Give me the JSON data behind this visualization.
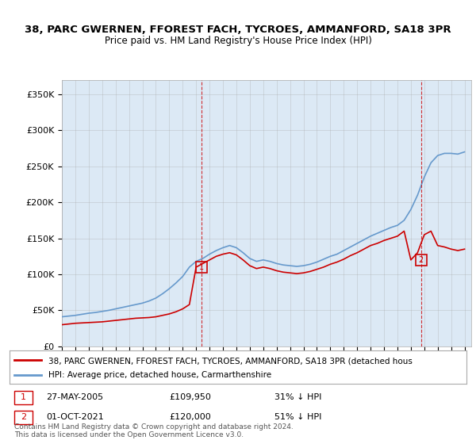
{
  "title1": "38, PARC GWERNEN, FFOREST FACH, TYCROES, AMMANFORD, SA18 3PR",
  "title2": "Price paid vs. HM Land Registry's House Price Index (HPI)",
  "bg_color": "#dce9f5",
  "plot_bg": "#dce9f5",
  "red_color": "#cc0000",
  "blue_color": "#6699cc",
  "marker1_date_idx": 0,
  "marker2_date_idx": 1,
  "marker1_label": "1",
  "marker2_label": "2",
  "marker1_info": "27-MAY-2005    £109,950    31% ↓ HPI",
  "marker2_info": "01-OCT-2021    £120,000    51% ↓ HPI",
  "legend_line1": "38, PARC GWERNEN, FFOREST FACH, TYCROES, AMMANFORD, SA18 3PR (detached hous",
  "legend_line2": "HPI: Average price, detached house, Carmarthenshire",
  "footnote": "Contains HM Land Registry data © Crown copyright and database right 2024.\nThis data is licensed under the Open Government Licence v3.0.",
  "ylabel_ticks": [
    "£0",
    "£50K",
    "£100K",
    "£150K",
    "£200K",
    "£250K",
    "£300K",
    "£350K"
  ],
  "ytick_vals": [
    0,
    50000,
    100000,
    150000,
    200000,
    250000,
    300000,
    350000
  ],
  "ylim": [
    0,
    370000
  ],
  "xlim_start": 1995.0,
  "xlim_end": 2025.5,
  "marker1_x": 2005.4,
  "marker2_x": 2021.75,
  "marker1_y_red": 109950,
  "marker2_y_red": 120000,
  "hpi_years": [
    1995,
    1995.5,
    1996,
    1996.5,
    1997,
    1997.5,
    1998,
    1998.5,
    1999,
    1999.5,
    2000,
    2000.5,
    2001,
    2001.5,
    2002,
    2002.5,
    2003,
    2003.5,
    2004,
    2004.5,
    2005,
    2005.5,
    2006,
    2006.5,
    2007,
    2007.5,
    2008,
    2008.5,
    2009,
    2009.5,
    2010,
    2010.5,
    2011,
    2011.5,
    2012,
    2012.5,
    2013,
    2013.5,
    2014,
    2014.5,
    2015,
    2015.5,
    2016,
    2016.5,
    2017,
    2017.5,
    2018,
    2018.5,
    2019,
    2019.5,
    2020,
    2020.5,
    2021,
    2021.5,
    2022,
    2022.5,
    2023,
    2023.5,
    2024,
    2024.5,
    2025
  ],
  "hpi_vals": [
    41000,
    42000,
    43000,
    44500,
    46000,
    47000,
    48500,
    50000,
    52000,
    54000,
    56000,
    58000,
    60000,
    63000,
    67000,
    73000,
    80000,
    88000,
    97000,
    110000,
    118000,
    122000,
    128000,
    133000,
    137000,
    140000,
    137000,
    130000,
    122000,
    118000,
    120000,
    118000,
    115000,
    113000,
    112000,
    111000,
    112000,
    114000,
    117000,
    121000,
    125000,
    128000,
    133000,
    138000,
    143000,
    148000,
    153000,
    157000,
    161000,
    165000,
    168000,
    175000,
    190000,
    210000,
    235000,
    255000,
    265000,
    268000,
    268000,
    267000,
    270000
  ],
  "red_years": [
    1995,
    1995.5,
    1996,
    1996.5,
    1997,
    1997.5,
    1998,
    1998.5,
    1999,
    1999.5,
    2000,
    2000.5,
    2001,
    2001.5,
    2002,
    2002.5,
    2003,
    2003.5,
    2004,
    2004.5,
    2005,
    2005.5,
    2006,
    2006.5,
    2007,
    2007.5,
    2008,
    2008.5,
    2009,
    2009.5,
    2010,
    2010.5,
    2011,
    2011.5,
    2012,
    2012.5,
    2013,
    2013.5,
    2014,
    2014.5,
    2015,
    2015.5,
    2016,
    2016.5,
    2017,
    2017.5,
    2018,
    2018.5,
    2019,
    2019.5,
    2020,
    2020.5,
    2021,
    2021.5,
    2022,
    2022.5,
    2023,
    2023.5,
    2024,
    2024.5,
    2025
  ],
  "red_vals": [
    30000,
    31000,
    32000,
    32500,
    33000,
    33500,
    34000,
    35000,
    36000,
    37000,
    38000,
    39000,
    39500,
    40000,
    41000,
    43000,
    45000,
    48000,
    52000,
    58000,
    109950,
    115000,
    120000,
    125000,
    128000,
    130000,
    127000,
    120000,
    112000,
    108000,
    110000,
    108000,
    105000,
    103000,
    102000,
    101000,
    102000,
    104000,
    107000,
    110000,
    114000,
    117000,
    121000,
    126000,
    130000,
    135000,
    140000,
    143000,
    147000,
    150000,
    153000,
    160000,
    120000,
    130000,
    155000,
    160000,
    140000,
    138000,
    135000,
    133000,
    135000
  ]
}
